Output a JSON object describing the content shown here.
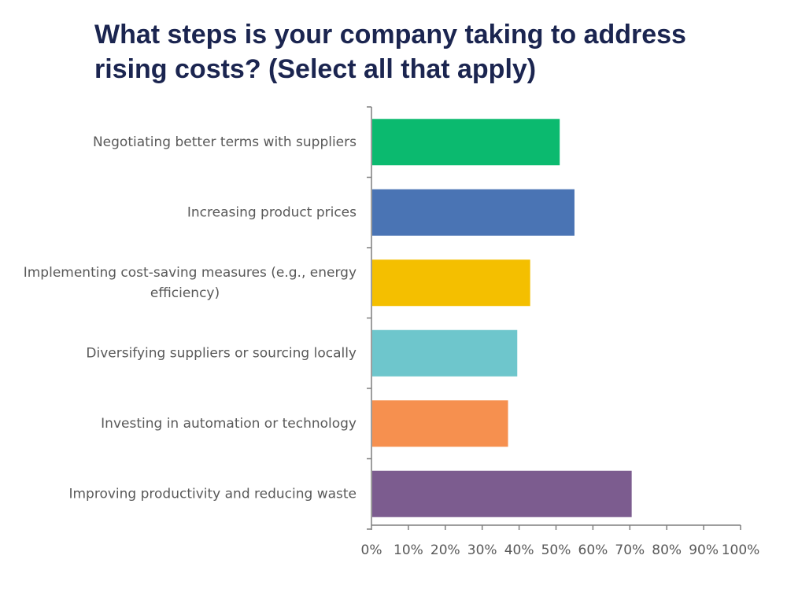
{
  "title": "What steps is your company taking to address rising costs? (Select all that apply)",
  "chart_data": {
    "type": "bar",
    "orientation": "horizontal",
    "title": "What steps is your company taking to address rising costs? (Select all that apply)",
    "xlabel": "",
    "ylabel": "",
    "xlim": [
      0,
      100
    ],
    "grid": false,
    "legend": "none",
    "x_ticks": [
      "0%",
      "10%",
      "20%",
      "30%",
      "40%",
      "50%",
      "60%",
      "70%",
      "80%",
      "90%",
      "100%"
    ],
    "categories": [
      {
        "label_lines": [
          "Negotiating better terms with suppliers"
        ],
        "value": 51,
        "color": "#0bba6f"
      },
      {
        "label_lines": [
          "Increasing product prices"
        ],
        "value": 55,
        "color": "#4a74b4"
      },
      {
        "label_lines": [
          "Implementing cost-saving measures (e.g., energy",
          "efficiency)"
        ],
        "value": 43,
        "color": "#f4bf00"
      },
      {
        "label_lines": [
          "Diversifying suppliers or sourcing locally"
        ],
        "value": 39.5,
        "color": "#6ec6cc"
      },
      {
        "label_lines": [
          "Investing in automation or technology"
        ],
        "value": 37,
        "color": "#f6904f"
      },
      {
        "label_lines": [
          "Improving productivity and reducing waste"
        ],
        "value": 70.5,
        "color": "#7c5c8f"
      }
    ]
  }
}
